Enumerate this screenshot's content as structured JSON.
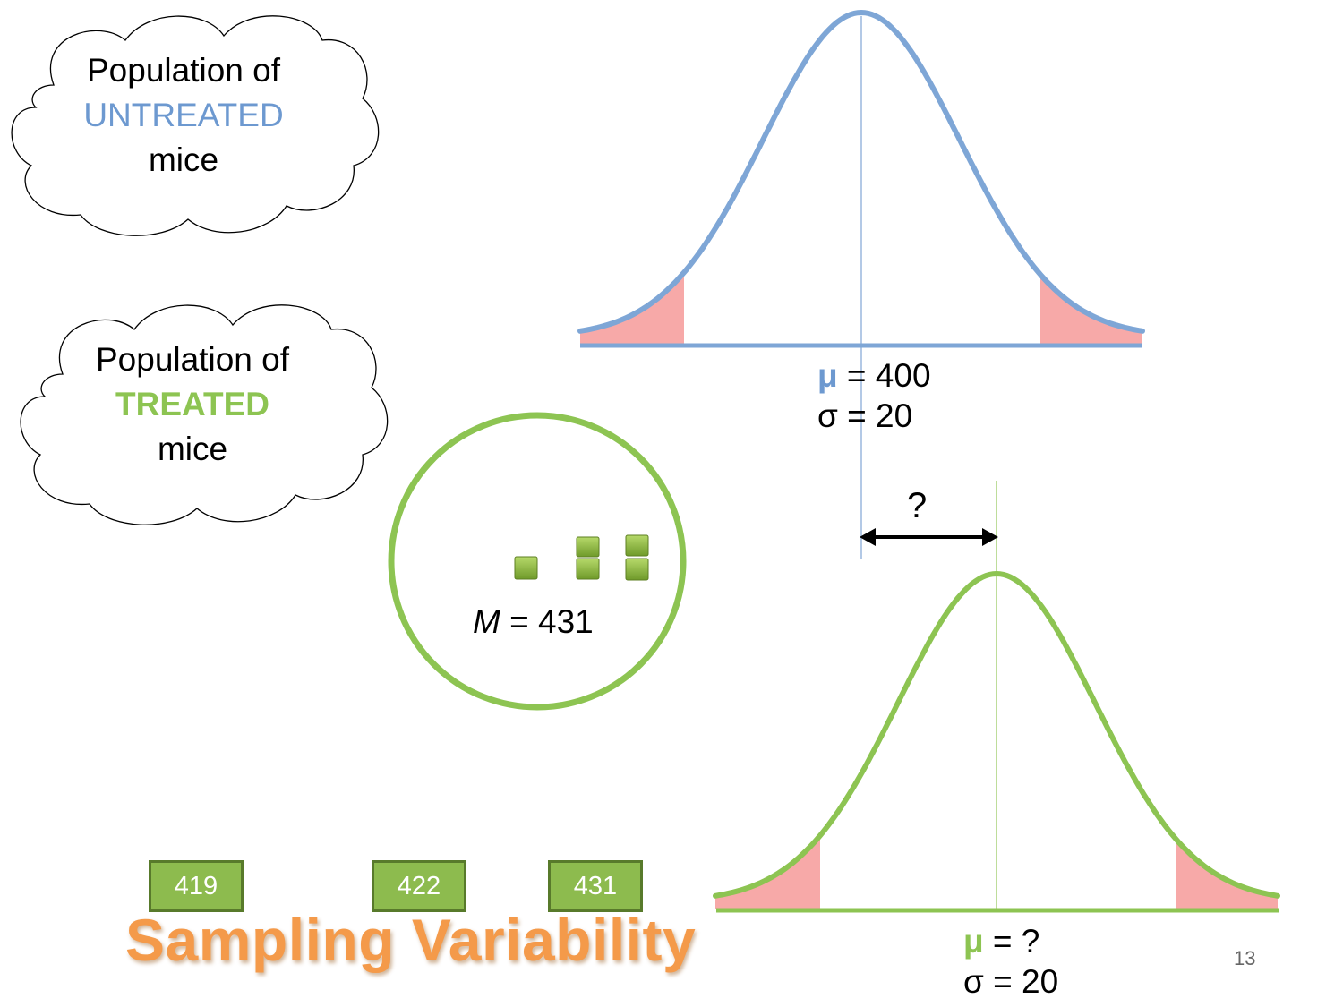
{
  "clouds": {
    "untreated": {
      "line1": "Population of",
      "line2": "UNTREATED",
      "line3": "mice"
    },
    "treated": {
      "line1": "Population of",
      "line2": "TREATED",
      "line3": "mice"
    }
  },
  "untreated_distribution": {
    "mu_symbol": "μ",
    "mu_rest": " = 400",
    "sigma_text": "σ = 20",
    "mean": 400,
    "sd": 20
  },
  "treated_distribution": {
    "mu_symbol": "μ",
    "mu_rest": " = ?",
    "sigma_text": "σ = 20",
    "sd": 20
  },
  "difference_label": "?",
  "sample": {
    "m_symbol": "M",
    "m_rest": " = 431",
    "mean": 431
  },
  "sample_means": [
    "419",
    "422",
    "431"
  ],
  "title": "Sampling Variability",
  "page_number": "13",
  "colors": {
    "untreated": "#6d99d0",
    "treated": "#8dc452",
    "tail": "#f7a9a8",
    "title": "#f49a4a",
    "box_fill": "#8dbb4e",
    "box_border": "#587a2b"
  }
}
